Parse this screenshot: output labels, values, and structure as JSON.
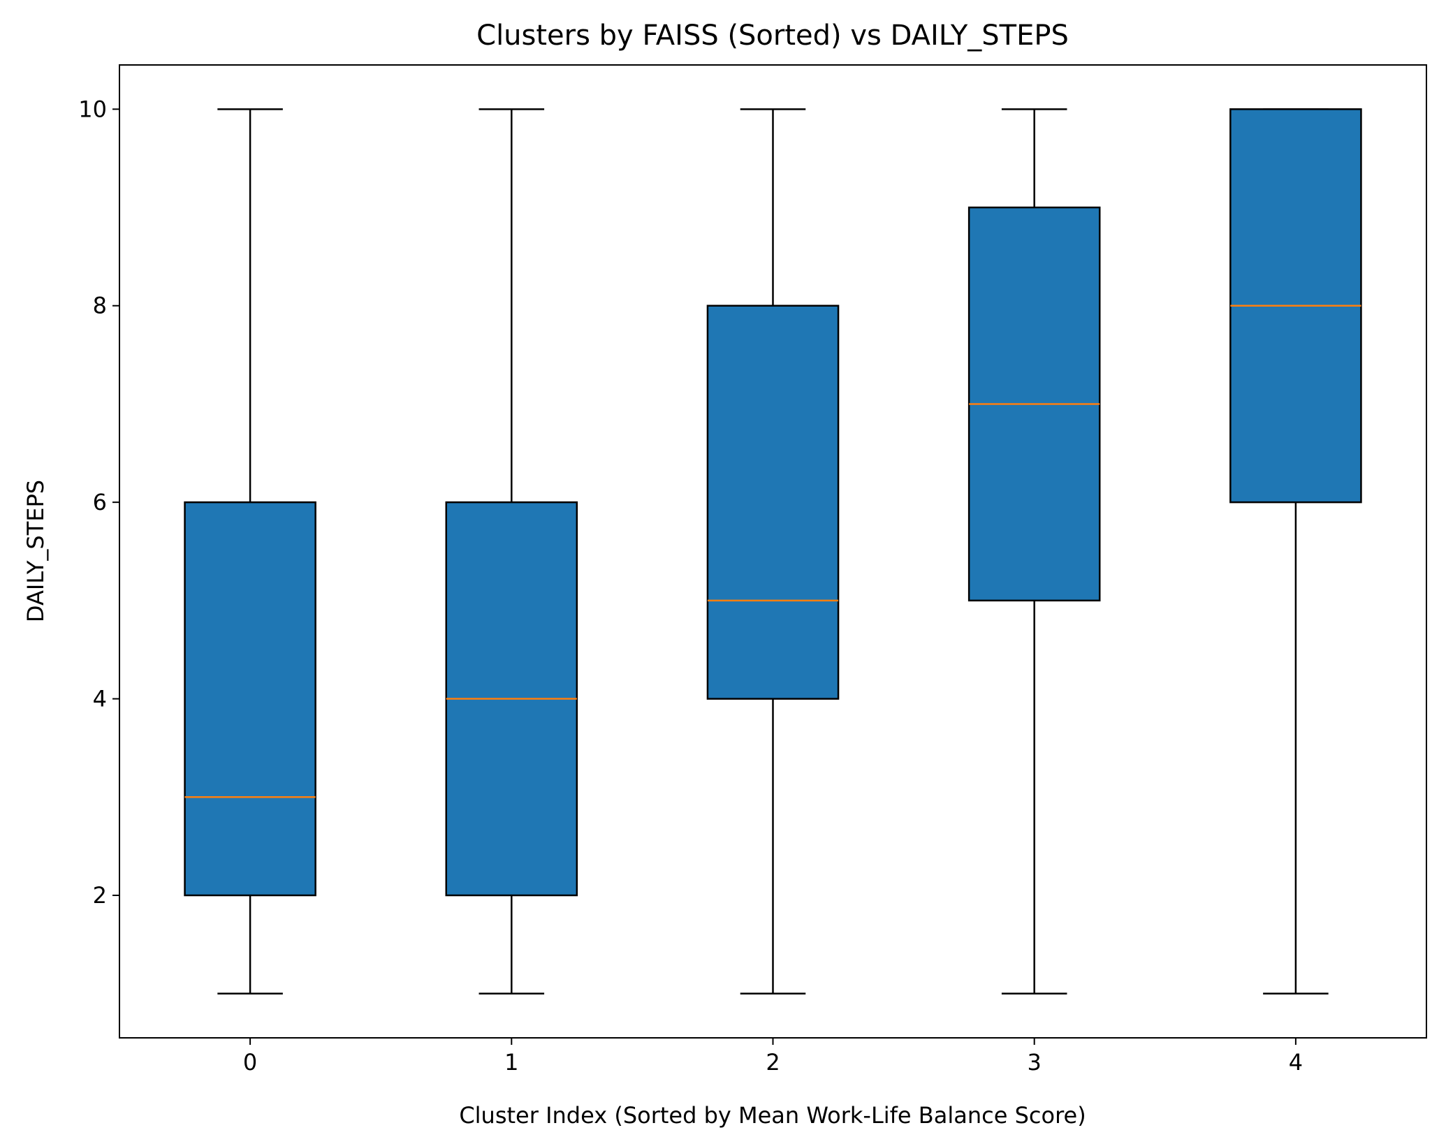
{
  "chart_data": {
    "type": "box",
    "title": "Clusters by FAISS (Sorted) vs DAILY_STEPS",
    "xlabel": "Cluster Index (Sorted by Mean Work-Life Balance Score)",
    "ylabel": "DAILY_STEPS",
    "categories": [
      "0",
      "1",
      "2",
      "3",
      "4"
    ],
    "boxes": [
      {
        "category": "0",
        "min": 1,
        "q1": 2,
        "median": 3,
        "q3": 6,
        "max": 10
      },
      {
        "category": "1",
        "min": 1,
        "q1": 2,
        "median": 4,
        "q3": 6,
        "max": 10
      },
      {
        "category": "2",
        "min": 1,
        "q1": 4,
        "median": 5,
        "q3": 8,
        "max": 10
      },
      {
        "category": "3",
        "min": 1,
        "q1": 5,
        "median": 7,
        "q3": 9,
        "max": 10
      },
      {
        "category": "4",
        "min": 1,
        "q1": 6,
        "median": 8,
        "q3": 10,
        "max": 10
      }
    ],
    "xlim": [
      -0.5,
      4.5
    ],
    "ylim": [
      0.55,
      10.45
    ],
    "yticks": [
      2,
      4,
      6,
      8,
      10
    ],
    "grid": false,
    "colors": {
      "box_fill": "#1f77b4",
      "median": "#ff7f0e",
      "edge": "#000000"
    }
  }
}
